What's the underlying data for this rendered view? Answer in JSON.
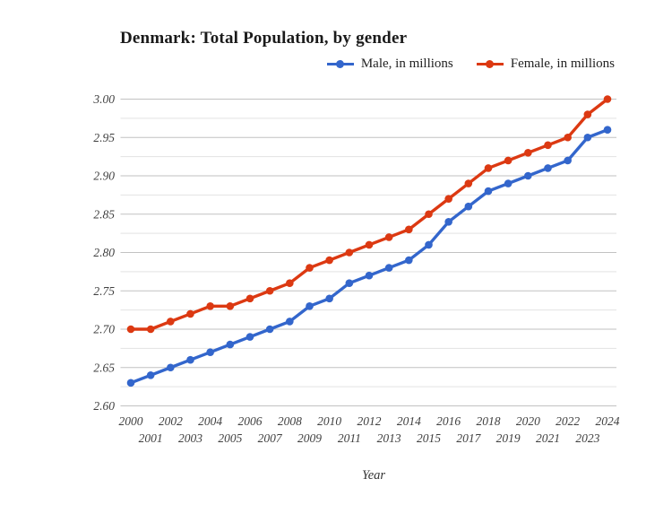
{
  "title": "Denmark: Total Population, by gender",
  "legend": [
    {
      "label": "Male, in millions",
      "color": "#3366cc"
    },
    {
      "label": "Female, in millions",
      "color": "#dc3912"
    }
  ],
  "colors": {
    "male_series": "#3366cc",
    "female_series": "#dc3912",
    "major_gridline": "#c2c2c2",
    "minor_gridline": "#e3e3e3",
    "tick_label": "#404040",
    "title_text": "#1a1a1a"
  },
  "chart_data": {
    "type": "line",
    "title": "Denmark: Total Population, by gender",
    "xlabel": "Year",
    "ylabel": "",
    "categories": [
      "2000",
      "2001",
      "2002",
      "2003",
      "2004",
      "2005",
      "2006",
      "2007",
      "2008",
      "2009",
      "2010",
      "2011",
      "2012",
      "2013",
      "2014",
      "2015",
      "2016",
      "2017",
      "2018",
      "2019",
      "2020",
      "2021",
      "2022",
      "2023",
      "2024"
    ],
    "series": [
      {
        "name": "Male, in millions",
        "color": "#3366cc",
        "values": [
          2.63,
          2.64,
          2.65,
          2.66,
          2.67,
          2.68,
          2.69,
          2.7,
          2.71,
          2.73,
          2.74,
          2.76,
          2.77,
          2.78,
          2.79,
          2.81,
          2.84,
          2.86,
          2.88,
          2.89,
          2.9,
          2.91,
          2.92,
          2.95,
          2.96
        ]
      },
      {
        "name": "Female, in millions",
        "color": "#dc3912",
        "values": [
          2.7,
          2.7,
          2.71,
          2.72,
          2.73,
          2.73,
          2.74,
          2.75,
          2.76,
          2.78,
          2.79,
          2.8,
          2.81,
          2.82,
          2.83,
          2.85,
          2.87,
          2.89,
          2.91,
          2.92,
          2.93,
          2.94,
          2.95,
          2.98,
          3.0
        ]
      }
    ],
    "ylim": [
      2.6,
      3.0
    ],
    "y_tick_values": [
      2.6,
      2.65,
      2.7,
      2.75,
      2.8,
      2.85,
      2.9,
      2.95,
      3.0
    ],
    "y_tick_labels": [
      "2.60",
      "2.65",
      "2.70",
      "2.75",
      "2.80",
      "2.85",
      "2.90",
      "2.95",
      "3.00"
    ],
    "grid": true,
    "minor_gridlines": true,
    "legend_position": "top",
    "x_label_rows": "staggered-even-odd"
  }
}
